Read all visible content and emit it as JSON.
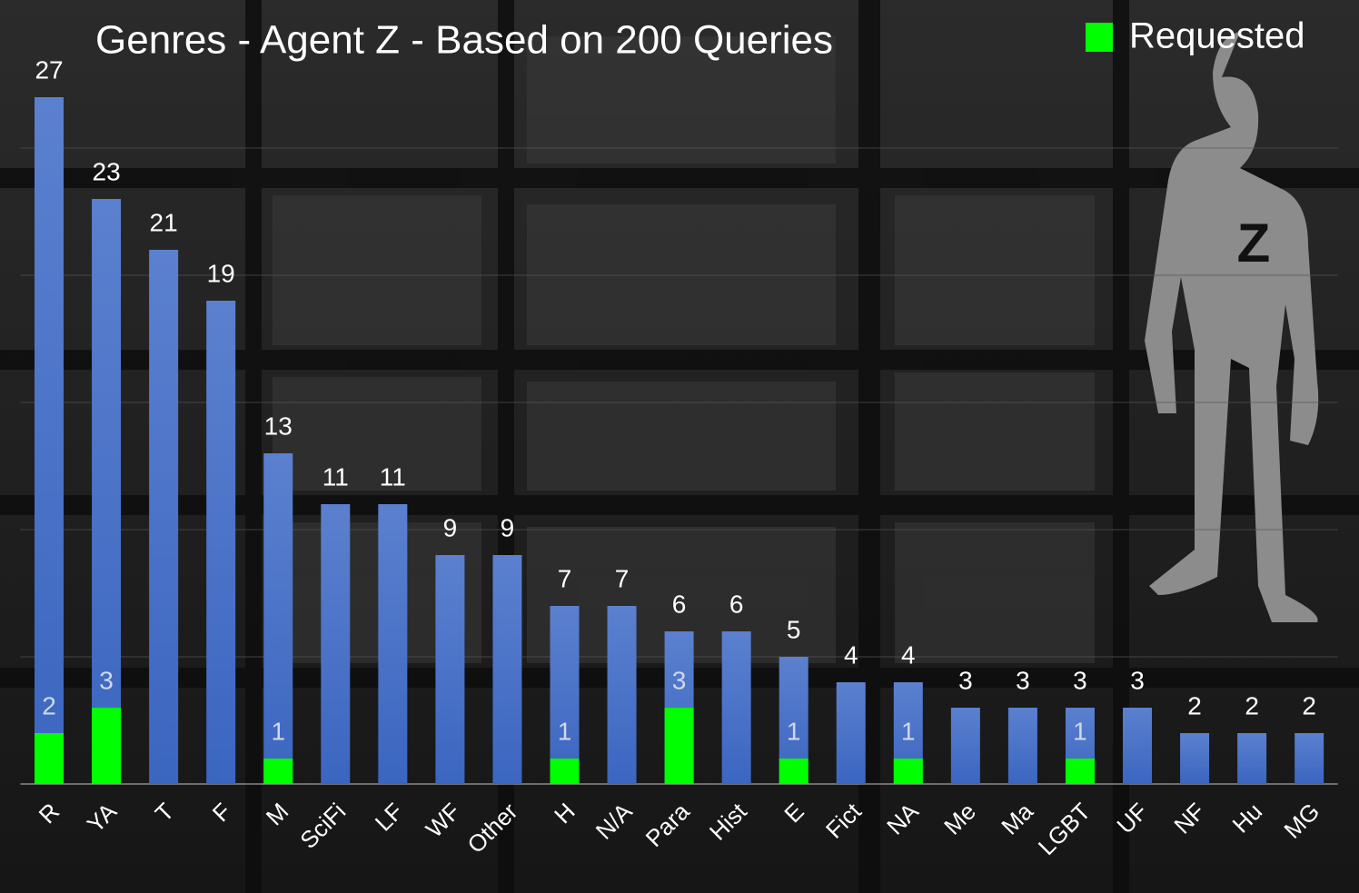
{
  "chart_data": {
    "type": "overlap_bar",
    "title": "Genres - Agent Z - Based on 200 Queries",
    "categories": [
      "R",
      "YA",
      "T",
      "F",
      "M",
      "SciFi",
      "LF",
      "WF",
      "Other",
      "H",
      "N/A",
      "Para",
      "Hist",
      "E",
      "Fict",
      "NA",
      "Me",
      "Ma",
      "LGBT",
      "UF",
      "NF",
      "Hu",
      "MG"
    ],
    "series": [
      {
        "color": "#4472c4",
        "values": [
          27,
          23,
          21,
          19,
          13,
          11,
          11,
          9,
          9,
          7,
          7,
          6,
          6,
          5,
          4,
          4,
          3,
          3,
          3,
          3,
          2,
          2,
          2
        ]
      },
      {
        "name": "Requested",
        "color": "#00ff00",
        "values": [
          2,
          3,
          null,
          null,
          1,
          null,
          null,
          null,
          null,
          1,
          null,
          3,
          null,
          1,
          null,
          1,
          null,
          null,
          1,
          null,
          null,
          null,
          null
        ]
      }
    ],
    "ylim": [
      0,
      30
    ],
    "yticks": [
      0,
      5,
      10,
      15,
      20,
      25
    ],
    "grid": true,
    "legend": "top-right",
    "annotation": "Z"
  }
}
